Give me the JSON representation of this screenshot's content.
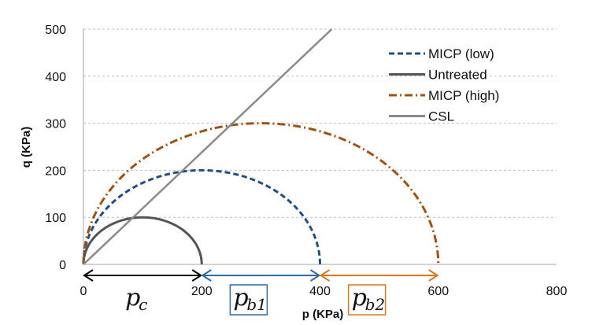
{
  "chart_data": {
    "type": "line",
    "xlabel": "p (KPa)",
    "ylabel": "q (KPa)",
    "xlim": [
      0,
      800
    ],
    "ylim": [
      0,
      500
    ],
    "xticks": [
      "0",
      "200",
      "400",
      "600",
      "800"
    ],
    "yticks": [
      "0",
      "100",
      "200",
      "300",
      "400",
      "500"
    ],
    "grid": "horizontal dashed",
    "legend_position": "top-right",
    "series": [
      {
        "name": "MICP (low)",
        "kind": "semicircle",
        "center": 200,
        "radius": 200,
        "color": "#1f4e8c",
        "style": "dashed"
      },
      {
        "name": "Untreated",
        "kind": "semicircle",
        "center": 100,
        "radius": 100,
        "color": "#555555",
        "style": "solid"
      },
      {
        "name": "MICP (high)",
        "kind": "semicircle",
        "center": 300,
        "radius": 300,
        "color": "#a0520f",
        "style": "dash-dot"
      },
      {
        "name": "CSL",
        "kind": "line",
        "x": [
          0,
          420
        ],
        "y": [
          0,
          500
        ],
        "color": "#8a8a8a",
        "style": "solid"
      }
    ],
    "annotations": [
      {
        "label_base": "p",
        "label_sub": "c",
        "from": 0,
        "to": 200,
        "color": "#000000",
        "box": false
      },
      {
        "label_base": "p",
        "label_sub": "b1",
        "from": 200,
        "to": 400,
        "color": "#2e6ca6",
        "box": true
      },
      {
        "label_base": "p",
        "label_sub": "b2",
        "from": 400,
        "to": 600,
        "color": "#d97a1a",
        "box": true
      }
    ]
  }
}
